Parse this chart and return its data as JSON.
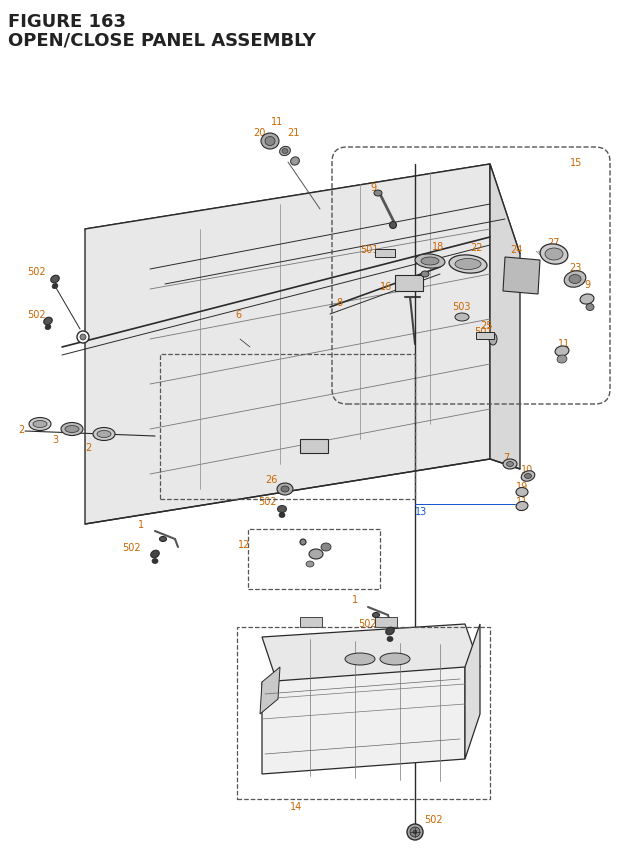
{
  "title_line1": "FIGURE 163",
  "title_line2": "OPEN/CLOSE PANEL ASSEMBLY",
  "title_color": "#1a1a2e",
  "title_fontsize": 13,
  "background_color": "#ffffff",
  "label_color_orange": "#cc6600",
  "label_color_blue": "#1155cc",
  "label_color_black": "#222222",
  "line_color": "#2a2a2a",
  "dashed_box_color": "#555555",
  "part_color": "#444444"
}
